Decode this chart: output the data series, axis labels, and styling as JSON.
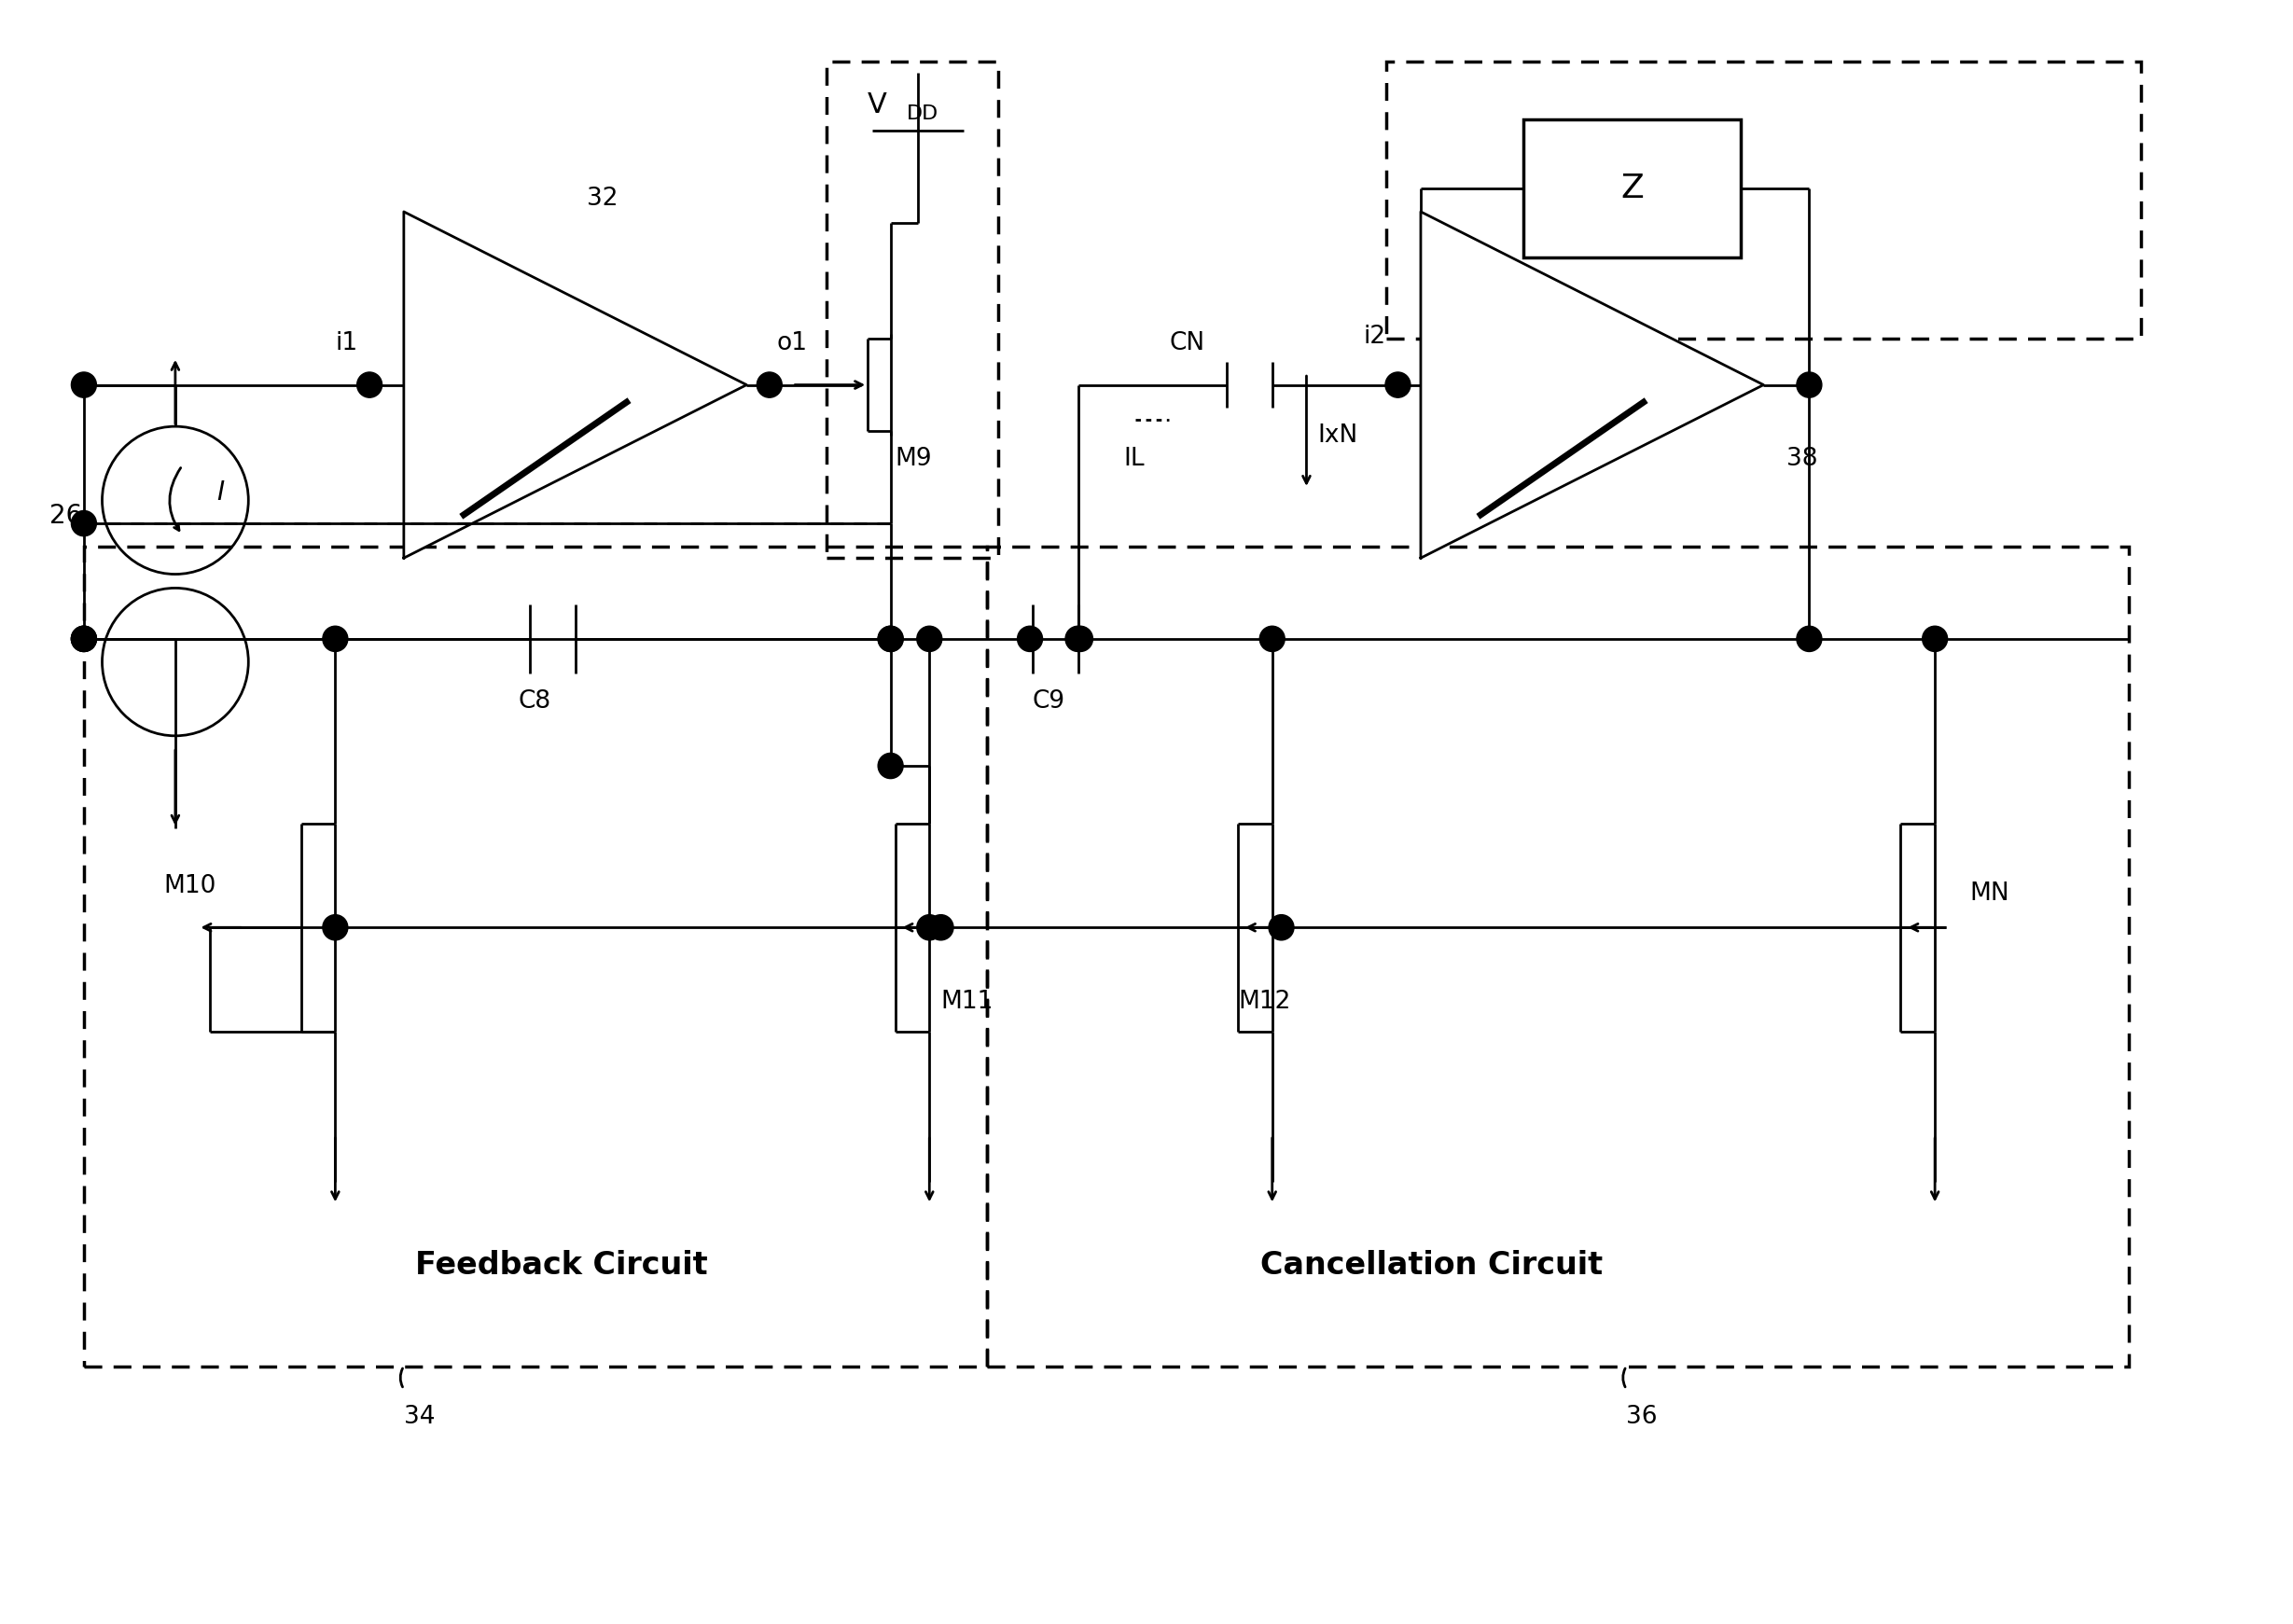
{
  "bg_color": "#ffffff",
  "lc": "#000000",
  "lw": 2.0,
  "labels": {
    "vdd_V": "V",
    "vdd_DD": "DD",
    "n26": "26",
    "n32": "32",
    "n34": "34",
    "n36": "36",
    "n38": "38",
    "i1": "i1",
    "o1": "o1",
    "i2": "i2",
    "C8": "C8",
    "C9": "C9",
    "M9": "M9",
    "M10": "M10",
    "M11": "M11",
    "M12": "M12",
    "MN": "MN",
    "CN": "CN",
    "IL": "IL",
    "IxN": "IxN",
    "I": "I",
    "Z": "Z",
    "feedback": "Feedback Circuit",
    "cancellation": "Cancellation Circuit"
  }
}
